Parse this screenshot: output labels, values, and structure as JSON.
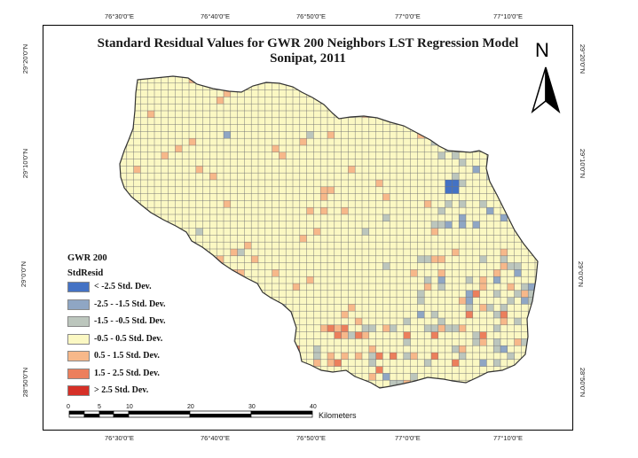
{
  "map": {
    "title_line1": "Standard Residual Values for GWR 200 Neighbors LST Regression Model",
    "title_line2": "Sonipat, 2011",
    "north_label": "N",
    "top_ticks": [
      "76°30'0\"E",
      "76°40'0\"E",
      "76°50'0\"E",
      "77°0'0\"E",
      "77°10'0\"E"
    ],
    "bottom_ticks": [
      "76°30'0\"E",
      "76°40'0\"E",
      "76°50'0\"E",
      "77°0'0\"E",
      "77°10'0\"E"
    ],
    "left_ticks": [
      "29°20'0\"N",
      "29°10'0\"N",
      "29°0'0\"N",
      "28°50'0\"N"
    ],
    "right_ticks": [
      "29°20'0\"N",
      "29°10'0\"N",
      "29°0'0\"N",
      "28°50'0\"N"
    ],
    "legend": {
      "title1": "GWR 200",
      "title2": "StdResid",
      "items": [
        {
          "label": "< -2.5 Std. Dev.",
          "color": "#4472c4"
        },
        {
          "label": "-2.5 - -1.5 Std. Dev.",
          "color": "#8fa6c4"
        },
        {
          "label": "-1.5 - -0.5 Std. Dev.",
          "color": "#bcc6bd"
        },
        {
          "label": "-0.5 - 0.5 Std. Dev.",
          "color": "#fbf8c3"
        },
        {
          "label": "0.5 - 1.5 Std. Dev.",
          "color": "#f7b88a"
        },
        {
          "label": "1.5 - 2.5 Std. Dev.",
          "color": "#ec7f5c"
        },
        {
          "label": "> 2.5 Std. Dev.",
          "color": "#d63027"
        }
      ]
    },
    "scale_bar": {
      "labels": [
        "0",
        "5",
        "10",
        "20",
        "30",
        "40"
      ],
      "unit": "Kilometers"
    },
    "colors": {
      "boundary": "#333333",
      "grid": "#6e6e6e",
      "background": "#ffffff"
    }
  }
}
